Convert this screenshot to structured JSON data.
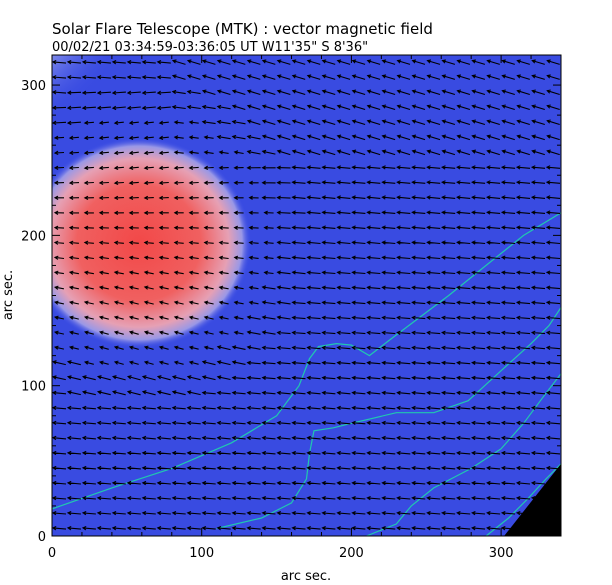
{
  "header": {
    "title": "Solar Flare Telescope (MTK) : vector magnetic field",
    "subtitle": "00/02/21  03:34:59-03:36:05 UT    W11'35\"  S 8'36\""
  },
  "chart_data": {
    "type": "heatmap",
    "title": "Solar Flare Telescope (MTK) : vector magnetic field",
    "subtitle": "00/02/21  03:34:59-03:36:05 UT    W11'35\"  S 8'36\"",
    "xlabel": "arc sec.",
    "ylabel": "arc sec.",
    "xlim": [
      0,
      340
    ],
    "ylim": [
      0,
      320
    ],
    "x_ticks": [
      0,
      100,
      200,
      300
    ],
    "y_ticks": [
      0,
      100,
      200,
      300
    ],
    "x_tick_labels": [
      "0",
      "100",
      "200",
      "300"
    ],
    "y_tick_labels": [
      "0",
      "100",
      "200",
      "300"
    ],
    "colors": {
      "background_field": "#3c4fe6",
      "positive_region": "#f05050",
      "contour": "#20c8b0",
      "vectors": "#000000",
      "occulted_corner": "#000000"
    },
    "positive_region": {
      "center": [
        58,
        195
      ],
      "radius_x": 75,
      "radius_y": 70
    },
    "neutral_line_contours": [
      {
        "name": "lower-left",
        "points": [
          [
            0,
            18
          ],
          [
            40,
            32
          ],
          [
            80,
            45
          ],
          [
            120,
            62
          ],
          [
            150,
            80
          ],
          [
            165,
            100
          ],
          [
            172,
            118
          ],
          [
            178,
            126
          ],
          [
            190,
            128
          ],
          [
            200,
            127
          ],
          [
            212,
            120
          ],
          [
            225,
            130
          ],
          [
            245,
            145
          ],
          [
            265,
            160
          ],
          [
            290,
            180
          ],
          [
            315,
            200
          ],
          [
            340,
            215
          ]
        ]
      },
      {
        "name": "middle",
        "points": [
          [
            110,
            5
          ],
          [
            140,
            12
          ],
          [
            160,
            22
          ],
          [
            170,
            38
          ],
          [
            172,
            55
          ],
          [
            175,
            70
          ],
          [
            188,
            72
          ],
          [
            200,
            75
          ],
          [
            230,
            82
          ],
          [
            255,
            82
          ],
          [
            278,
            90
          ],
          [
            300,
            110
          ],
          [
            320,
            128
          ],
          [
            332,
            140
          ],
          [
            340,
            152
          ]
        ]
      },
      {
        "name": "right",
        "points": [
          [
            210,
            0
          ],
          [
            230,
            8
          ],
          [
            240,
            20
          ],
          [
            255,
            32
          ],
          [
            280,
            45
          ],
          [
            300,
            58
          ],
          [
            315,
            75
          ],
          [
            330,
            95
          ],
          [
            340,
            108
          ]
        ]
      },
      {
        "name": "corner",
        "points": [
          [
            290,
            0
          ],
          [
            305,
            12
          ],
          [
            318,
            25
          ],
          [
            330,
            38
          ],
          [
            340,
            48
          ]
        ]
      }
    ],
    "vector_field": {
      "grid_spacing": 10,
      "x_range": [
        5,
        335
      ],
      "y_range": [
        5,
        315
      ],
      "dominant_direction": "left",
      "typical_angle_deg": 175
    }
  }
}
